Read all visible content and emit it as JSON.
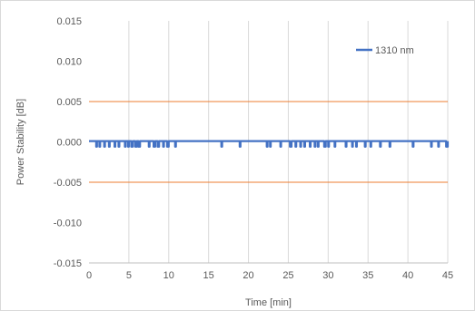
{
  "chart_data": {
    "type": "line",
    "title": "",
    "xlabel": "Time [min]",
    "ylabel": "Power Stability [dB]",
    "xlim": [
      0,
      45
    ],
    "ylim": [
      -0.015,
      0.015
    ],
    "x_ticks": [
      "0",
      "5",
      "10",
      "15",
      "20",
      "25",
      "30",
      "35",
      "40",
      "45"
    ],
    "y_ticks": [
      "0.015",
      "0.010",
      "0.005",
      "0.000",
      "-0.005",
      "-0.010",
      "-0.015"
    ],
    "gridlines": {
      "vertical": true,
      "horizontal": false
    },
    "reference_lines": [
      {
        "y": 0.005,
        "color": "#ed7d31"
      },
      {
        "y": -0.005,
        "color": "#ed7d31"
      }
    ],
    "legend": {
      "position": "top-right"
    },
    "series": [
      {
        "name": "1310 nm",
        "color": "#4472c4",
        "baseline": 0.0001,
        "dip_value": -0.0006,
        "dips": [
          [
            0.9,
            1.0
          ],
          [
            1.3,
            1.4
          ],
          [
            1.9,
            2.0
          ],
          [
            2.5,
            2.6
          ],
          [
            3.2,
            3.3
          ],
          [
            3.7,
            3.8
          ],
          [
            4.5,
            4.6
          ],
          [
            4.9,
            5.0
          ],
          [
            5.3,
            5.5
          ],
          [
            5.8,
            6.0
          ],
          [
            6.2,
            6.4
          ],
          [
            7.5,
            7.6
          ],
          [
            8.1,
            8.3
          ],
          [
            8.6,
            8.8
          ],
          [
            9.3,
            9.4
          ],
          [
            9.8,
            10.0
          ],
          [
            10.8,
            10.9
          ],
          [
            16.6,
            16.7
          ],
          [
            18.9,
            19.0
          ],
          [
            22.3,
            22.4
          ],
          [
            22.7,
            22.8
          ],
          [
            24.0,
            24.1
          ],
          [
            25.2,
            25.4
          ],
          [
            25.9,
            26.0
          ],
          [
            26.5,
            26.6
          ],
          [
            27.0,
            27.1
          ],
          [
            27.7,
            27.8
          ],
          [
            28.3,
            28.4
          ],
          [
            28.7,
            28.8
          ],
          [
            29.5,
            29.7
          ],
          [
            30.0,
            30.1
          ],
          [
            30.8,
            30.9
          ],
          [
            32.2,
            32.3
          ],
          [
            33.0,
            33.1
          ],
          [
            33.5,
            33.6
          ],
          [
            34.6,
            34.7
          ],
          [
            35.3,
            35.4
          ],
          [
            36.5,
            36.6
          ],
          [
            37.7,
            37.8
          ],
          [
            40.6,
            40.7
          ],
          [
            42.9,
            43.0
          ],
          [
            43.8,
            43.9
          ],
          [
            44.8,
            45.0
          ]
        ]
      }
    ]
  }
}
